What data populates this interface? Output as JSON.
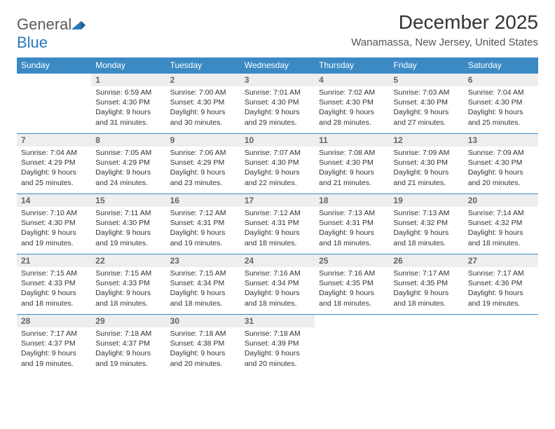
{
  "logo": {
    "text_gray": "General",
    "text_blue": "Blue",
    "brand_color": "#2a7ab9",
    "gray_color": "#5a5a5a"
  },
  "title": "December 2025",
  "location": "Wanamassa, New Jersey, United States",
  "colors": {
    "header_bg": "#3b8ac4",
    "header_fg": "#ffffff",
    "daynum_bg": "#eeeeee",
    "daynum_fg": "#666666",
    "border": "#3b8ac4",
    "body_text": "#333333",
    "page_bg": "#ffffff"
  },
  "day_headers": [
    "Sunday",
    "Monday",
    "Tuesday",
    "Wednesday",
    "Thursday",
    "Friday",
    "Saturday"
  ],
  "weeks": [
    [
      {
        "empty": true
      },
      {
        "num": "1",
        "sunrise": "6:59 AM",
        "sunset": "4:30 PM",
        "daylight": "9 hours and 31 minutes."
      },
      {
        "num": "2",
        "sunrise": "7:00 AM",
        "sunset": "4:30 PM",
        "daylight": "9 hours and 30 minutes."
      },
      {
        "num": "3",
        "sunrise": "7:01 AM",
        "sunset": "4:30 PM",
        "daylight": "9 hours and 29 minutes."
      },
      {
        "num": "4",
        "sunrise": "7:02 AM",
        "sunset": "4:30 PM",
        "daylight": "9 hours and 28 minutes."
      },
      {
        "num": "5",
        "sunrise": "7:03 AM",
        "sunset": "4:30 PM",
        "daylight": "9 hours and 27 minutes."
      },
      {
        "num": "6",
        "sunrise": "7:04 AM",
        "sunset": "4:30 PM",
        "daylight": "9 hours and 25 minutes."
      }
    ],
    [
      {
        "num": "7",
        "sunrise": "7:04 AM",
        "sunset": "4:29 PM",
        "daylight": "9 hours and 25 minutes."
      },
      {
        "num": "8",
        "sunrise": "7:05 AM",
        "sunset": "4:29 PM",
        "daylight": "9 hours and 24 minutes."
      },
      {
        "num": "9",
        "sunrise": "7:06 AM",
        "sunset": "4:29 PM",
        "daylight": "9 hours and 23 minutes."
      },
      {
        "num": "10",
        "sunrise": "7:07 AM",
        "sunset": "4:30 PM",
        "daylight": "9 hours and 22 minutes."
      },
      {
        "num": "11",
        "sunrise": "7:08 AM",
        "sunset": "4:30 PM",
        "daylight": "9 hours and 21 minutes."
      },
      {
        "num": "12",
        "sunrise": "7:09 AM",
        "sunset": "4:30 PM",
        "daylight": "9 hours and 21 minutes."
      },
      {
        "num": "13",
        "sunrise": "7:09 AM",
        "sunset": "4:30 PM",
        "daylight": "9 hours and 20 minutes."
      }
    ],
    [
      {
        "num": "14",
        "sunrise": "7:10 AM",
        "sunset": "4:30 PM",
        "daylight": "9 hours and 19 minutes."
      },
      {
        "num": "15",
        "sunrise": "7:11 AM",
        "sunset": "4:30 PM",
        "daylight": "9 hours and 19 minutes."
      },
      {
        "num": "16",
        "sunrise": "7:12 AM",
        "sunset": "4:31 PM",
        "daylight": "9 hours and 19 minutes."
      },
      {
        "num": "17",
        "sunrise": "7:12 AM",
        "sunset": "4:31 PM",
        "daylight": "9 hours and 18 minutes."
      },
      {
        "num": "18",
        "sunrise": "7:13 AM",
        "sunset": "4:31 PM",
        "daylight": "9 hours and 18 minutes."
      },
      {
        "num": "19",
        "sunrise": "7:13 AM",
        "sunset": "4:32 PM",
        "daylight": "9 hours and 18 minutes."
      },
      {
        "num": "20",
        "sunrise": "7:14 AM",
        "sunset": "4:32 PM",
        "daylight": "9 hours and 18 minutes."
      }
    ],
    [
      {
        "num": "21",
        "sunrise": "7:15 AM",
        "sunset": "4:33 PM",
        "daylight": "9 hours and 18 minutes."
      },
      {
        "num": "22",
        "sunrise": "7:15 AM",
        "sunset": "4:33 PM",
        "daylight": "9 hours and 18 minutes."
      },
      {
        "num": "23",
        "sunrise": "7:15 AM",
        "sunset": "4:34 PM",
        "daylight": "9 hours and 18 minutes."
      },
      {
        "num": "24",
        "sunrise": "7:16 AM",
        "sunset": "4:34 PM",
        "daylight": "9 hours and 18 minutes."
      },
      {
        "num": "25",
        "sunrise": "7:16 AM",
        "sunset": "4:35 PM",
        "daylight": "9 hours and 18 minutes."
      },
      {
        "num": "26",
        "sunrise": "7:17 AM",
        "sunset": "4:35 PM",
        "daylight": "9 hours and 18 minutes."
      },
      {
        "num": "27",
        "sunrise": "7:17 AM",
        "sunset": "4:36 PM",
        "daylight": "9 hours and 19 minutes."
      }
    ],
    [
      {
        "num": "28",
        "sunrise": "7:17 AM",
        "sunset": "4:37 PM",
        "daylight": "9 hours and 19 minutes."
      },
      {
        "num": "29",
        "sunrise": "7:18 AM",
        "sunset": "4:37 PM",
        "daylight": "9 hours and 19 minutes."
      },
      {
        "num": "30",
        "sunrise": "7:18 AM",
        "sunset": "4:38 PM",
        "daylight": "9 hours and 20 minutes."
      },
      {
        "num": "31",
        "sunrise": "7:18 AM",
        "sunset": "4:39 PM",
        "daylight": "9 hours and 20 minutes."
      },
      {
        "empty": true
      },
      {
        "empty": true
      },
      {
        "empty": true
      }
    ]
  ],
  "labels": {
    "sunrise": "Sunrise:",
    "sunset": "Sunset:",
    "daylight": "Daylight:"
  }
}
